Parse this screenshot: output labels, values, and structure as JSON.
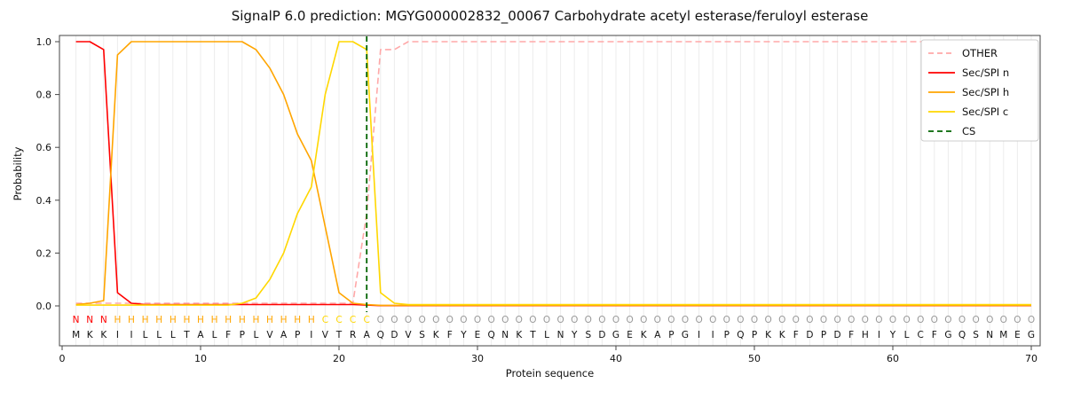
{
  "chart_data": {
    "type": "line",
    "title": "SignalP 6.0 prediction: MGYG000002832_00067 Carbohydrate acetyl esterase/feruloyl esterase",
    "xlabel": "Protein sequence",
    "ylabel": "Probability",
    "xlim": [
      0,
      70.6
    ],
    "ylim": [
      -0.15,
      1.02
    ],
    "xticks": [
      0,
      10,
      20,
      30,
      40,
      50,
      60,
      70
    ],
    "yticks": [
      "0.0",
      "0.2",
      "0.4",
      "0.6",
      "0.8",
      "1.0"
    ],
    "grid": "vertical-per-residue",
    "legend_position": "upper-right",
    "legend": [
      "OTHER",
      "Sec/SPI n",
      "Sec/SPI h",
      "Sec/SPI c",
      "CS"
    ],
    "x_start": 1,
    "series": [
      {
        "name": "OTHER",
        "color": "#ffa8a8",
        "style": "dashed",
        "values": [
          0.01,
          0.01,
          0.01,
          0.01,
          0.01,
          0.01,
          0.01,
          0.01,
          0.01,
          0.01,
          0.01,
          0.01,
          0.01,
          0.01,
          0.01,
          0.01,
          0.01,
          0.01,
          0.01,
          0.01,
          0.01,
          0.35,
          0.97,
          0.97,
          1.0,
          1.0,
          1.0,
          1.0,
          1.0,
          1.0,
          1.0,
          1.0,
          1.0,
          1.0,
          1.0,
          1.0,
          1.0,
          1.0,
          1.0,
          1.0,
          1.0,
          1.0,
          1.0,
          1.0,
          1.0,
          1.0,
          1.0,
          1.0,
          1.0,
          1.0,
          1.0,
          1.0,
          1.0,
          1.0,
          1.0,
          1.0,
          1.0,
          1.0,
          1.0,
          1.0,
          1.0,
          1.0,
          1.0,
          1.0,
          1.0,
          1.0,
          1.0,
          1.0,
          1.0,
          1.0
        ]
      },
      {
        "name": "Sec/SPI n",
        "color": "#ff0000",
        "style": "solid",
        "values": [
          1.0,
          1.0,
          0.97,
          0.05,
          0.01,
          0.005,
          0.005,
          0.005,
          0.005,
          0.005,
          0.005,
          0.005,
          0.005,
          0.005,
          0.005,
          0.005,
          0.005,
          0.005,
          0.005,
          0.005,
          0.005,
          0.003,
          0.001,
          0.001,
          0.001,
          0.001,
          0.001,
          0.001,
          0.001,
          0.001,
          0.001,
          0.001,
          0.001,
          0.001,
          0.001,
          0.001,
          0.001,
          0.001,
          0.001,
          0.001,
          0.001,
          0.001,
          0.001,
          0.001,
          0.001,
          0.001,
          0.001,
          0.001,
          0.001,
          0.001,
          0.001,
          0.001,
          0.001,
          0.001,
          0.001,
          0.001,
          0.001,
          0.001,
          0.001,
          0.001,
          0.001,
          0.001,
          0.001,
          0.001,
          0.001,
          0.001,
          0.001,
          0.001,
          0.001,
          0.001
        ]
      },
      {
        "name": "Sec/SPI h",
        "color": "#ffa500",
        "style": "solid",
        "values": [
          0.005,
          0.01,
          0.02,
          0.95,
          1.0,
          1.0,
          1.0,
          1.0,
          1.0,
          1.0,
          1.0,
          1.0,
          1.0,
          0.97,
          0.9,
          0.8,
          0.65,
          0.55,
          0.3,
          0.05,
          0.01,
          0.005,
          0.002,
          0.002,
          0.002,
          0.002,
          0.002,
          0.002,
          0.002,
          0.002,
          0.002,
          0.002,
          0.002,
          0.002,
          0.002,
          0.002,
          0.002,
          0.002,
          0.002,
          0.002,
          0.002,
          0.002,
          0.002,
          0.002,
          0.002,
          0.002,
          0.002,
          0.002,
          0.002,
          0.002,
          0.002,
          0.002,
          0.002,
          0.002,
          0.002,
          0.002,
          0.002,
          0.002,
          0.002,
          0.002,
          0.002,
          0.002,
          0.002,
          0.002,
          0.002,
          0.002,
          0.002,
          0.002,
          0.002,
          0.002
        ]
      },
      {
        "name": "Sec/SPI c",
        "color": "#ffd700",
        "style": "solid",
        "values": [
          0.003,
          0.003,
          0.003,
          0.003,
          0.003,
          0.003,
          0.003,
          0.003,
          0.003,
          0.003,
          0.003,
          0.003,
          0.01,
          0.03,
          0.1,
          0.2,
          0.35,
          0.45,
          0.8,
          1.0,
          1.0,
          0.97,
          0.05,
          0.01,
          0.005,
          0.005,
          0.005,
          0.005,
          0.005,
          0.005,
          0.005,
          0.005,
          0.005,
          0.005,
          0.005,
          0.005,
          0.005,
          0.005,
          0.005,
          0.005,
          0.005,
          0.005,
          0.005,
          0.005,
          0.005,
          0.005,
          0.005,
          0.005,
          0.005,
          0.005,
          0.005,
          0.005,
          0.005,
          0.005,
          0.005,
          0.005,
          0.005,
          0.005,
          0.005,
          0.005,
          0.005,
          0.005,
          0.005,
          0.005,
          0.005,
          0.005,
          0.005,
          0.005,
          0.005,
          0.005
        ]
      }
    ],
    "cs_line": {
      "name": "CS",
      "x": 22,
      "color": "#006400",
      "style": "dashed"
    },
    "sequence": "MKKIILLLTALFPLVAPIVTRAQDVSKFYEQNKTLNYSDGEKAPGIIPQPKKFDPDFHIYLCFGQSNMEG",
    "region_runs": [
      [
        "N",
        1,
        3
      ],
      [
        "H",
        4,
        18
      ],
      [
        "C",
        19,
        22
      ],
      [
        "O",
        23,
        70
      ]
    ],
    "region_colors": {
      "N": "#ff0000",
      "H": "#ffa500",
      "C": "#ffd700",
      "O": "#999999"
    }
  }
}
